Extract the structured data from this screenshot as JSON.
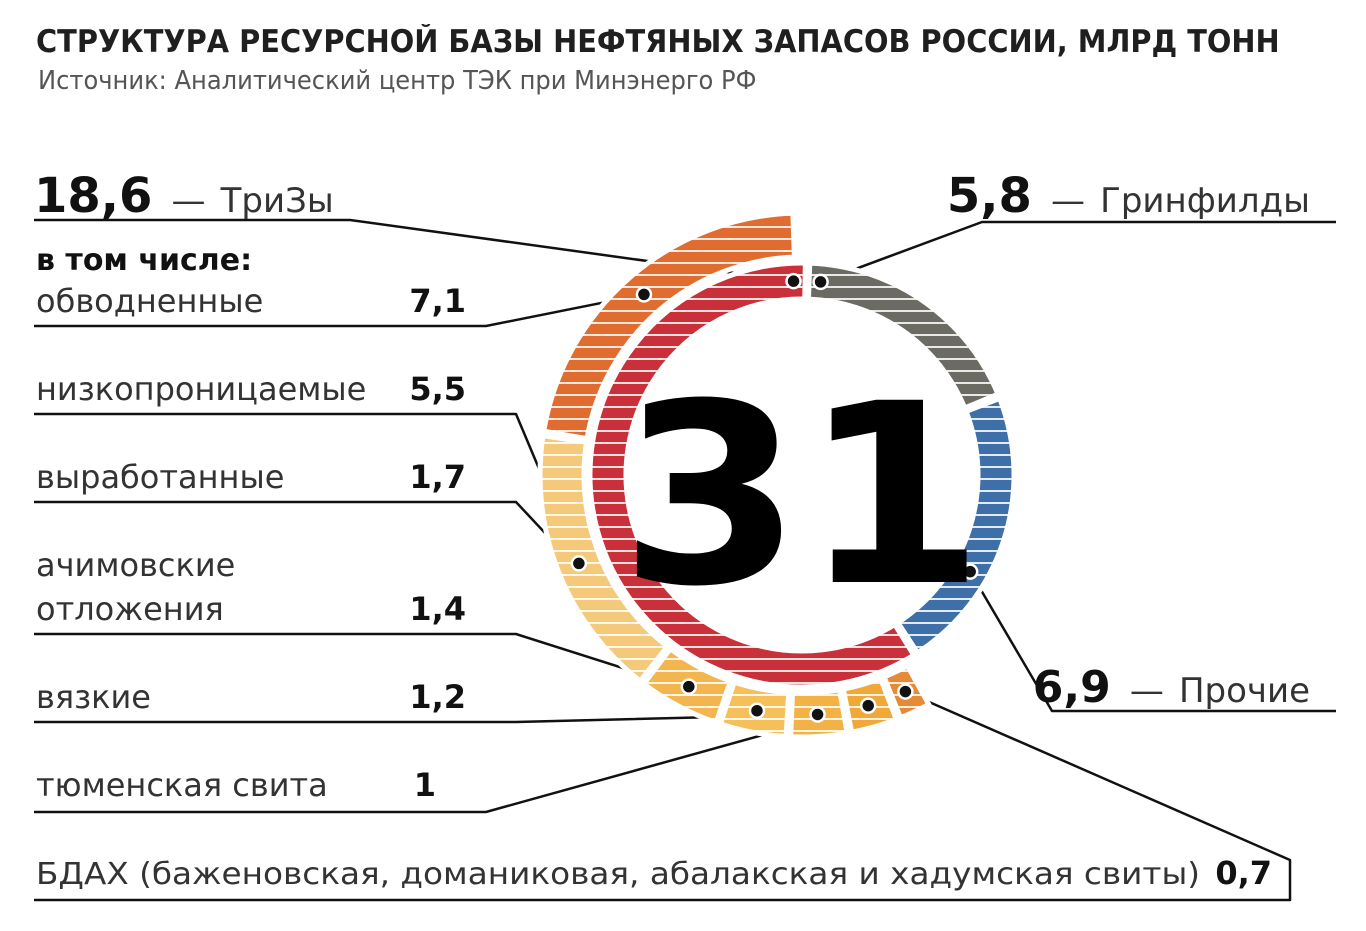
{
  "title": "СТРУКТУРА РЕСУРСНОЙ БАЗЫ НЕФТЯНЫХ ЗАПАСОВ РОССИИ, МЛРД ТОНН",
  "subtitle": "Источник: Аналитический центр ТЭК при Минэнерго РФ",
  "chart_data": {
    "type": "donut",
    "unit": "млрд тонн",
    "total": "31",
    "series": [
      {
        "label": "ТриЗы",
        "value": 18.6,
        "value_text": "18,6",
        "color": "#c9303a"
      },
      {
        "label": "Гринфилды",
        "value": 5.8,
        "value_text": "5,8",
        "color": "#6b6b63"
      },
      {
        "label": "Прочие",
        "value": 6.9,
        "value_text": "6,9",
        "color": "#3e6fa8"
      }
    ],
    "breakdown_heading": "в том числе:",
    "breakdown": [
      {
        "label": "обводненные",
        "value": 7.1,
        "value_text": "7,1",
        "color": "#e06c30"
      },
      {
        "label": "низкопроницаемые",
        "value": 5.5,
        "value_text": "5,5",
        "color": "#f5c97a"
      },
      {
        "label": "выработанные",
        "value": 1.7,
        "value_text": "1,7",
        "color": "#f3b64e"
      },
      {
        "label": "ачимовские отложения",
        "label_lines": [
          "ачимовские",
          "отложения"
        ],
        "value": 1.4,
        "value_text": "1,4",
        "color": "#f5c05a"
      },
      {
        "label": "вязкие",
        "value": 1.2,
        "value_text": "1,2",
        "color": "#f3b246"
      },
      {
        "label": "тюменская свита",
        "value": 1,
        "value_text": "1",
        "color": "#f0a838"
      },
      {
        "label": "БДАХ (баженовская, доманиковая, абалакская и хадумская свиты)",
        "value": 0.7,
        "value_text": "0,7",
        "color": "#e58a36"
      }
    ]
  }
}
